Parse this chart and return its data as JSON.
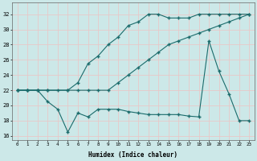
{
  "xlabel": "Humidex (Indice chaleur)",
  "bg_color": "#cce8e8",
  "grid_color": "#e8c8c8",
  "line_color": "#1a6b6b",
  "x_ticks": [
    0,
    1,
    2,
    3,
    4,
    5,
    6,
    7,
    8,
    9,
    10,
    11,
    12,
    13,
    14,
    15,
    16,
    17,
    18,
    19,
    20,
    21,
    22,
    23
  ],
  "ylim": [
    15.5,
    33.5
  ],
  "xlim": [
    -0.5,
    23.5
  ],
  "yticks": [
    16,
    18,
    20,
    22,
    24,
    26,
    28,
    30,
    32
  ],
  "line1_x": [
    0,
    1,
    2,
    3,
    4,
    5,
    6,
    7,
    8,
    9,
    10,
    11,
    12,
    13,
    14,
    15,
    16,
    17,
    18,
    19,
    20,
    21,
    22,
    23
  ],
  "line1_y": [
    22,
    22,
    22,
    22,
    22,
    22,
    22,
    22,
    22,
    22,
    23,
    24,
    25,
    26,
    27,
    28,
    28.5,
    29,
    29.5,
    30,
    30.5,
    31,
    31.5,
    32
  ],
  "line2_x": [
    0,
    1,
    2,
    3,
    5,
    6,
    7,
    8,
    9,
    10,
    11,
    12,
    13,
    14,
    15,
    16,
    17,
    18,
    19,
    20,
    21,
    22,
    23
  ],
  "line2_y": [
    22,
    22,
    22,
    22,
    22,
    23,
    25.5,
    26.5,
    28,
    29,
    30.5,
    31,
    32,
    32,
    31.5,
    31.5,
    31.5,
    32,
    32,
    32,
    32,
    32,
    32
  ],
  "line3_x": [
    0,
    1,
    2,
    3,
    4,
    5,
    6,
    7,
    8,
    9,
    10,
    11,
    12,
    13,
    14,
    15,
    16,
    17,
    18,
    19,
    20,
    21,
    22,
    23
  ],
  "line3_y": [
    22,
    22,
    22,
    20.5,
    19.5,
    16.5,
    19,
    18.5,
    19.5,
    19.5,
    19.5,
    19.2,
    19.0,
    18.8,
    18.8,
    18.8,
    18.8,
    18.6,
    18.5,
    28.5,
    24.5,
    21.5,
    18,
    18
  ]
}
